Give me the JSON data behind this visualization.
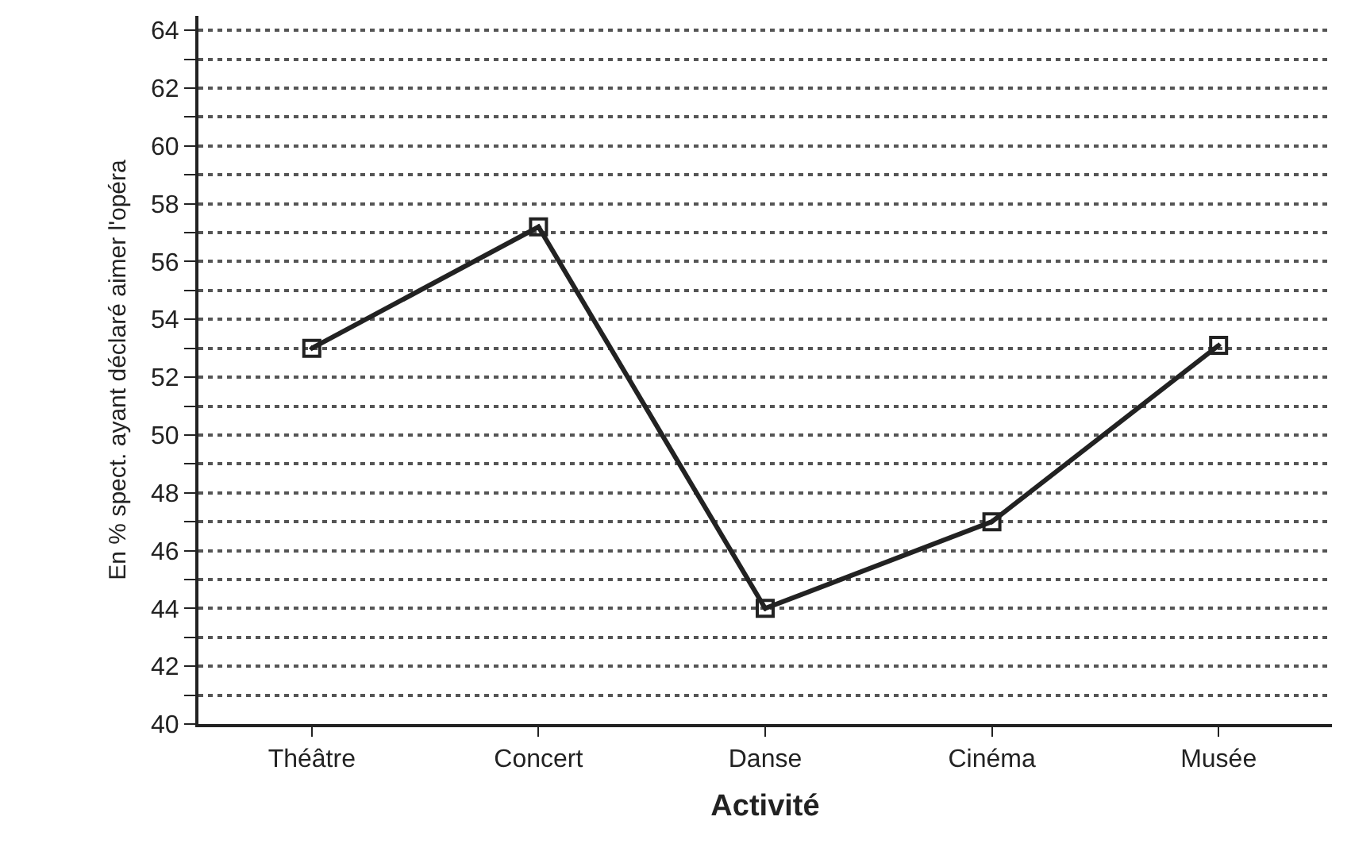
{
  "chart_data": {
    "type": "line",
    "xlabel": "Activité",
    "ylabel": "En % spect. ayant déclaré aimer l'opéra",
    "categories": [
      "Théâtre",
      "Concert",
      "Danse",
      "Cinéma",
      "Musée"
    ],
    "series": [
      {
        "color": "#222222",
        "values": [
          53,
          57.2,
          44,
          47,
          53.1
        ]
      }
    ],
    "ylim": [
      40,
      64.5
    ],
    "yticks": [
      40,
      {
        "value": 41,
        "label": null
      },
      42,
      {
        "value": 43,
        "label": null
      },
      44,
      {
        "value": 45,
        "label": null
      },
      46,
      {
        "value": 47,
        "label": null
      },
      48,
      {
        "value": 49,
        "label": null
      },
      50,
      {
        "value": 51,
        "label": null
      },
      52,
      {
        "value": 53,
        "label": null
      },
      54,
      {
        "value": 55,
        "label": null
      },
      56,
      {
        "value": 57,
        "label": null
      },
      58,
      {
        "value": 59,
        "label": null
      },
      60,
      {
        "value": 61,
        "label": null
      },
      62,
      {
        "value": 63,
        "label": null
      },
      64
    ],
    "grid": "y",
    "marker": "square",
    "line_style": "solid",
    "legend": false
  }
}
